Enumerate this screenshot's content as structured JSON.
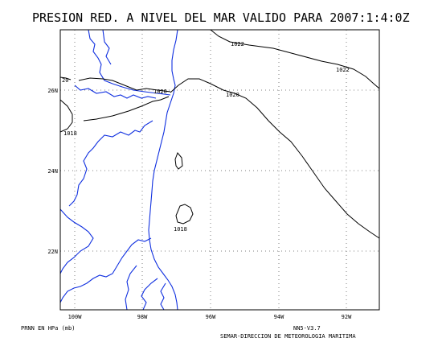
{
  "title": "PRESION RED. A NIVEL DEL MAR VALIDO PARA 2007:1:4:0Z",
  "footer": {
    "units": "PRNN EN HPa (mb)",
    "version": "NN5-V3.7",
    "credit": "SEMAR-DIRECCION DE METEOROLOGIA MARITIMA"
  },
  "axes": {
    "x_ticks": [
      "100W",
      "98W",
      "96W",
      "94W",
      "92W"
    ],
    "y_ticks": [
      "26N",
      "24N",
      "22N"
    ]
  },
  "contour_labels": [
    "1022",
    "1022",
    "1020",
    "1020",
    "20",
    "1018",
    "1018"
  ],
  "colors": {
    "coastline": "#1030e0",
    "contours": "#000000",
    "grid": "#808080"
  }
}
